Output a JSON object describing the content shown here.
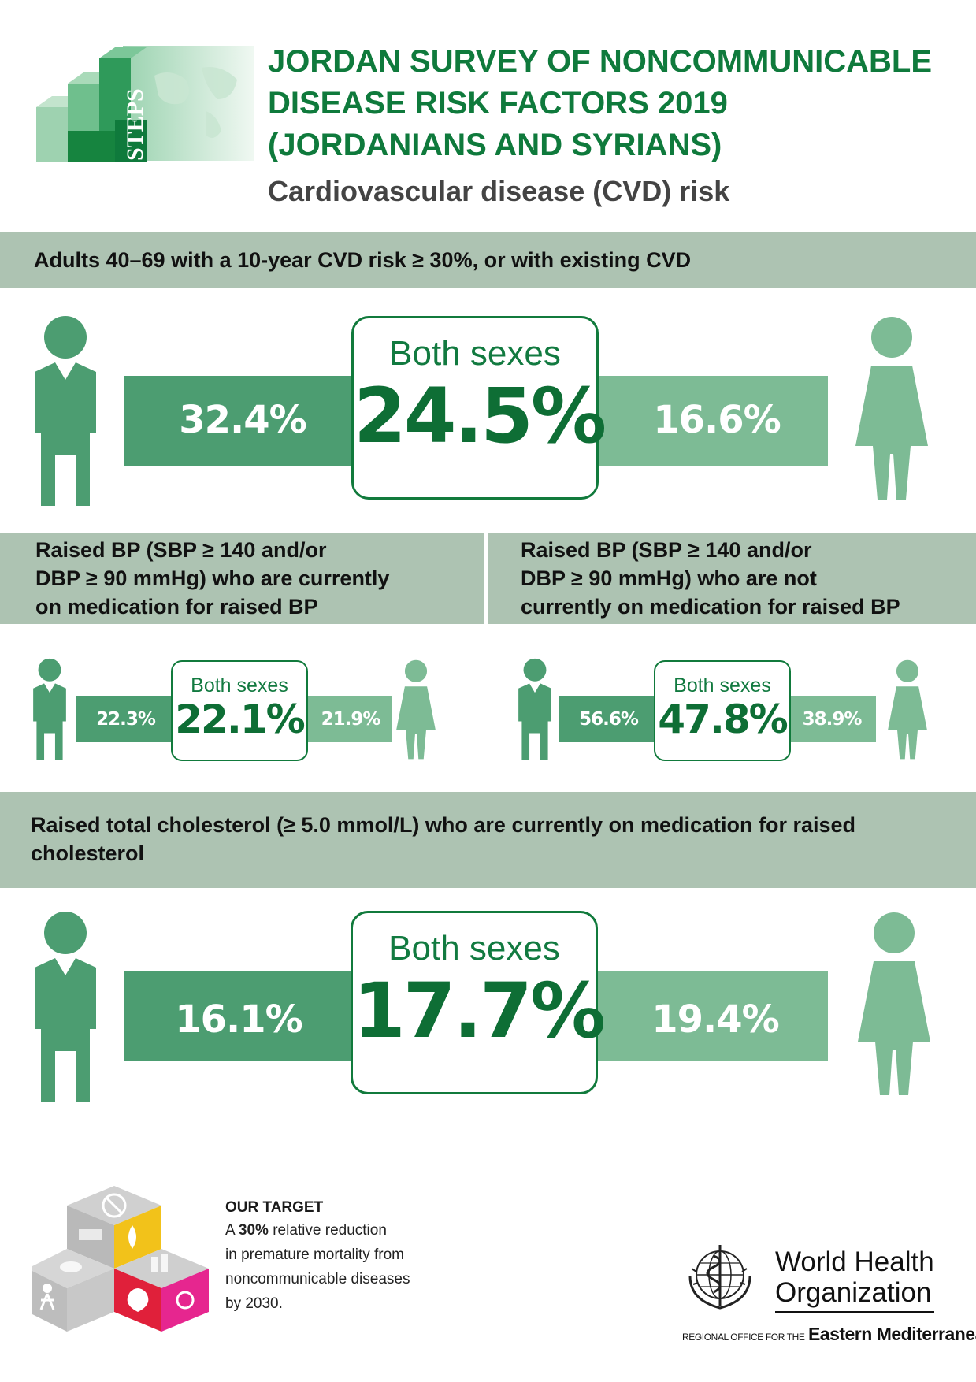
{
  "header": {
    "title_lines": [
      "JORDAN SURVEY OF NONCOMMUNICABLE",
      "DISEASE RISK FACTORS 2019",
      "(JORDANIANS AND SYRIANS)"
    ],
    "subtitle": "Cardiovascular disease (CVD) risk",
    "logo_text": "STEPS"
  },
  "colors": {
    "dark_green": "#0f7a3c",
    "bar_male": "#4c9d71",
    "bar_female": "#7dbb95",
    "band": "#adc3b2"
  },
  "section_cvd": {
    "heading": "Adults 40–69 with a 10-year CVD risk ≥ 30%, or with existing CVD",
    "male": "32.4%",
    "female": "16.6%",
    "both_label": "Both sexes",
    "both": "24.5%"
  },
  "section_bp_med": {
    "heading_lines": [
      "Raised BP (SBP ≥ 140 and/or",
      "DBP ≥ 90 mmHg) who are currently",
      "on medication for raised BP"
    ],
    "male": "22.3%",
    "female": "21.9%",
    "both_label": "Both sexes",
    "both": "22.1%"
  },
  "section_bp_nomed": {
    "heading_lines": [
      "Raised BP (SBP ≥ 140 and/or",
      "DBP ≥ 90 mmHg) who are not",
      "currently on medication for raised BP"
    ],
    "male": "56.6%",
    "female": "38.9%",
    "both_label": "Both sexes",
    "both": "47.8%"
  },
  "section_chol": {
    "heading_lines": [
      "Raised total cholesterol (≥ 5.0 mmol/L) who are currently on medication for raised",
      "cholesterol"
    ],
    "male": "16.1%",
    "female": "19.4%",
    "both_label": "Both sexes",
    "both": "17.7%"
  },
  "target": {
    "heading": "OUR TARGET",
    "line1_prefix": "A ",
    "line1_bold": "30%",
    "line1_rest": " relative reduction",
    "line2": "in premature mortality from",
    "line3": "noncommunicable diseases",
    "line4": "by 2030."
  },
  "who": {
    "name_line1": "World Health",
    "name_line2": "Organization",
    "regional_prefix": "REGIONAL OFFICE FOR THE",
    "regional_name": "Eastern Mediterranean"
  }
}
